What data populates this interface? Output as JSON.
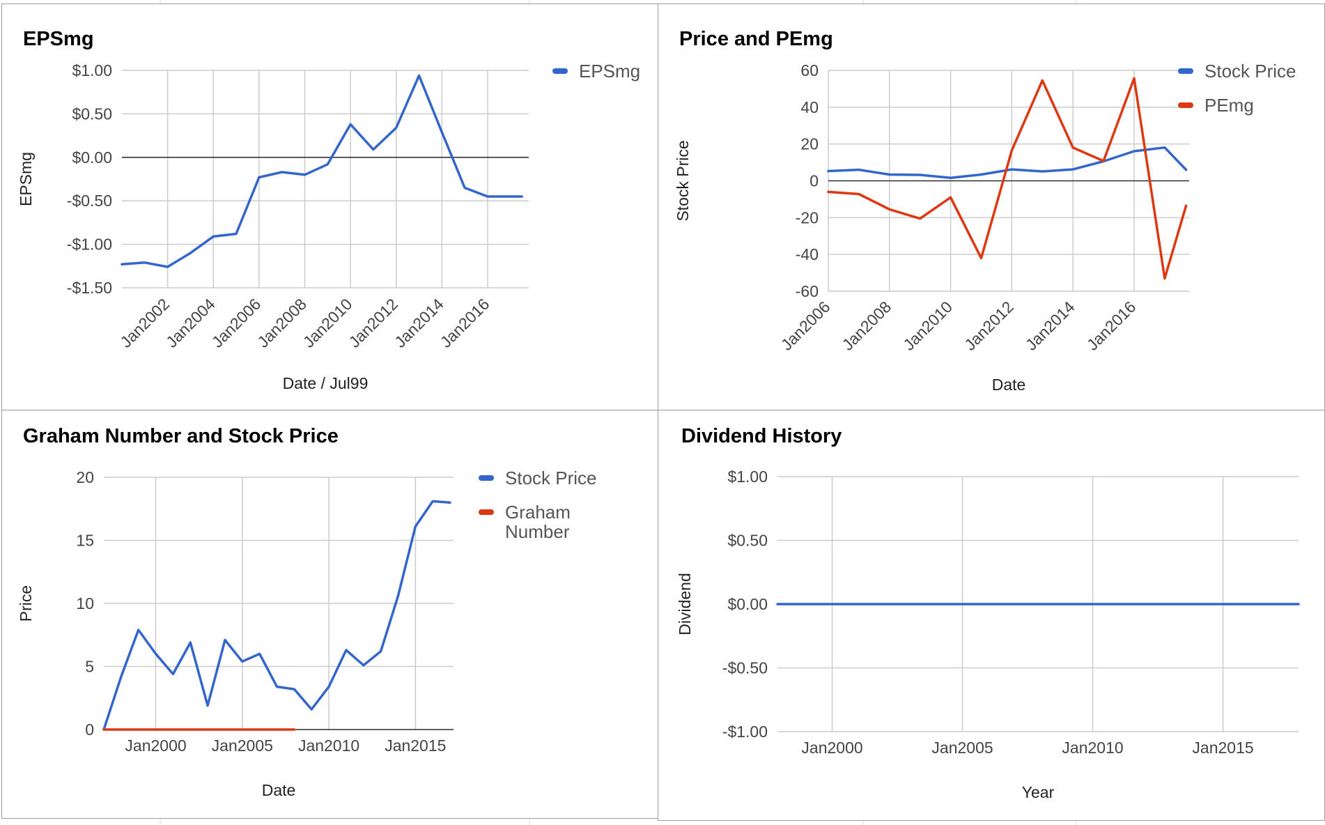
{
  "colors": {
    "blue": "#3366cc",
    "red": "#dc3912",
    "grid": "#cccccc",
    "border": "#9e9e9e"
  },
  "chart_data": [
    {
      "id": "eps",
      "type": "line",
      "title": "EPSmg",
      "xlabel": "Date / Jul99",
      "ylabel": "EPSmg",
      "legend_position": "right",
      "ylim": [
        -1.5,
        1.0
      ],
      "yticks": [
        1.0,
        0.5,
        0.0,
        -0.5,
        -1.0,
        -1.5
      ],
      "ytick_labels": [
        "$1.00",
        "$0.50",
        "$0.00",
        "-$0.50",
        "-$1.00",
        "-$1.50"
      ],
      "xlim": [
        2000.0,
        2017.8
      ],
      "xticks": [
        2002,
        2004,
        2006,
        2008,
        2010,
        2012,
        2014,
        2016
      ],
      "xtick_labels": [
        "Jan2002",
        "Jan2004",
        "Jan2006",
        "Jan2008",
        "Jan2010",
        "Jan2012",
        "Jan2014",
        "Jan2016"
      ],
      "series": [
        {
          "name": "EPSmg",
          "color": "#3366cc",
          "x": [
            2000.0,
            2001.0,
            2002.0,
            2003.0,
            2004.0,
            2005.0,
            2006.0,
            2007.0,
            2008.0,
            2009.0,
            2010.0,
            2011.0,
            2012.0,
            2013.0,
            2014.0,
            2015.0,
            2016.0,
            2017.5
          ],
          "values": [
            -1.23,
            -1.21,
            -1.26,
            -1.1,
            -0.91,
            -0.88,
            -0.23,
            -0.17,
            -0.2,
            -0.08,
            0.38,
            0.09,
            0.34,
            0.94,
            0.29,
            -0.35,
            -0.45,
            -0.45
          ]
        }
      ]
    },
    {
      "id": "price-pe",
      "type": "line",
      "title": "Price and PEmg",
      "xlabel": "Date",
      "ylabel": "Stock Price",
      "legend_position": "right",
      "ylim": [
        -60,
        60
      ],
      "yticks": [
        60,
        40,
        20,
        0,
        -20,
        -40,
        -60
      ],
      "ytick_labels": [
        "60",
        "40",
        "20",
        "0",
        "-20",
        "-40",
        "-60"
      ],
      "xlim": [
        2006.0,
        2017.8
      ],
      "xticks": [
        2006,
        2008,
        2010,
        2012,
        2014,
        2016
      ],
      "xtick_labels": [
        "Jan2006",
        "Jan2008",
        "Jan2010",
        "Jan2012",
        "Jan2014",
        "Jan2016"
      ],
      "series": [
        {
          "name": "Stock Price",
          "color": "#3366cc",
          "x": [
            2006.0,
            2007.0,
            2008.0,
            2009.0,
            2010.0,
            2011.0,
            2012.0,
            2013.0,
            2014.0,
            2015.0,
            2016.0,
            2017.0,
            2017.7
          ],
          "values": [
            5.3,
            6.0,
            3.4,
            3.2,
            1.6,
            3.4,
            6.2,
            5.1,
            6.2,
            10.6,
            16.1,
            18.1,
            6.0
          ]
        },
        {
          "name": "PEmg",
          "color": "#dc3912",
          "x": [
            2006.0,
            2007.0,
            2008.0,
            2009.0,
            2010.0,
            2011.0,
            2012.0,
            2013.0,
            2014.0,
            2015.0,
            2016.0,
            2017.0,
            2017.7
          ],
          "values": [
            -6.0,
            -7.2,
            -15.5,
            -20.5,
            -9.0,
            -42.0,
            16.5,
            54.5,
            18.0,
            10.8,
            55.7,
            -53.0,
            -13.5
          ]
        }
      ]
    },
    {
      "id": "graham",
      "type": "line",
      "title": "Graham Number and Stock Price",
      "xlabel": "Date",
      "ylabel": "Price",
      "legend_position": "right",
      "ylim": [
        0,
        20
      ],
      "yticks": [
        20,
        15,
        10,
        5,
        0
      ],
      "ytick_labels": [
        "20",
        "15",
        "10",
        "5",
        "0"
      ],
      "xlim": [
        1997.0,
        2017.2
      ],
      "xticks": [
        2000,
        2005,
        2010,
        2015
      ],
      "xtick_labels": [
        "Jan2000",
        "Jan2005",
        "Jan2010",
        "Jan2015"
      ],
      "series": [
        {
          "name": "Stock Price",
          "color": "#3366cc",
          "x": [
            1997.0,
            1998.0,
            1999.0,
            2000.0,
            2001.0,
            2002.0,
            2003.0,
            2004.0,
            2005.0,
            2006.0,
            2007.0,
            2008.0,
            2009.0,
            2010.0,
            2011.0,
            2012.0,
            2013.0,
            2014.0,
            2015.0,
            2016.0,
            2017.0
          ],
          "values": [
            0,
            4.2,
            7.9,
            6.0,
            4.4,
            6.9,
            1.9,
            7.1,
            5.4,
            6.0,
            3.4,
            3.2,
            1.6,
            3.4,
            6.3,
            5.1,
            6.2,
            10.6,
            16.1,
            18.1,
            18.0
          ]
        },
        {
          "name": "Graham Number",
          "legend_lines": [
            "Graham",
            "Number"
          ],
          "color": "#dc3912",
          "x": [
            1997.0,
            2008.0
          ],
          "values": [
            0,
            0
          ]
        }
      ]
    },
    {
      "id": "dividend",
      "type": "line",
      "title": "Dividend History",
      "xlabel": "Year",
      "ylabel": "Dividend",
      "legend_position": "none",
      "ylim": [
        -1.0,
        1.0
      ],
      "yticks": [
        1.0,
        0.5,
        0.0,
        -0.5,
        -1.0
      ],
      "ytick_labels": [
        "$1.00",
        "$0.50",
        "$0.00",
        "-$0.50",
        "-$1.00"
      ],
      "xlim": [
        1997.9,
        2017.9
      ],
      "xticks": [
        2000,
        2005,
        2010,
        2015
      ],
      "xtick_labels": [
        "Jan2000",
        "Jan2005",
        "Jan2010",
        "Jan2015"
      ],
      "series": [
        {
          "color": "#3366cc",
          "x": [
            1997.9,
            2017.9
          ],
          "values": [
            0,
            0
          ]
        }
      ]
    }
  ]
}
